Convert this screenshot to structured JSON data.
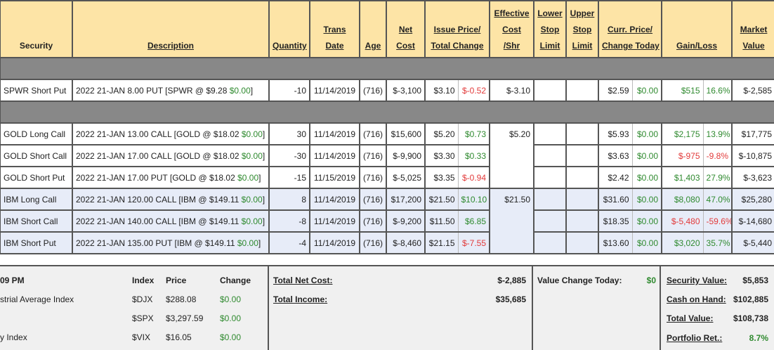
{
  "headers": {
    "security": "Security",
    "description": "Description",
    "quantity": "Quantity",
    "trans_date": [
      "Trans",
      "Date"
    ],
    "age": "Age",
    "net_cost": [
      "Net",
      "Cost"
    ],
    "issue_price": [
      "Issue Price/",
      "Total Change"
    ],
    "effective_cost": [
      "Effective",
      "Cost",
      "/Shr"
    ],
    "lower_stop": [
      "Lower",
      "Stop",
      "Limit"
    ],
    "upper_stop": [
      "Upper",
      "Stop",
      "Limit"
    ],
    "curr_price": [
      "Curr. Price/",
      "Change Today"
    ],
    "gain_loss": "Gain/Loss",
    "market_value": [
      "Market",
      "Value"
    ]
  },
  "rows": [
    {
      "security": "SPWR Short Put",
      "desc": "2022 21-JAN 8.00 PUT [SPWR @ $9.28 ",
      "desc_chg": "$0.00",
      "desc_tail": "]",
      "qty": "-10",
      "date": "11/14/2019",
      "age": "(716)",
      "net_cost": "$-3,100",
      "issue": "$3.10",
      "total_chg": "$-0.52",
      "total_chg_color": "red",
      "eff": "$-3.10",
      "curr": "$2.59",
      "chg_today": "$0.00",
      "gain": "$515",
      "gain_pct": "16.6%",
      "gain_color": "green",
      "mv": "$-2,585",
      "group": "spwr"
    },
    {
      "security": "GOLD Long Call",
      "desc": "2022 21-JAN 13.00 CALL [GOLD @ $18.02 ",
      "desc_chg": "$0.00",
      "desc_tail": "]",
      "qty": "30",
      "date": "11/14/2019",
      "age": "(716)",
      "net_cost": "$15,600",
      "issue": "$5.20",
      "total_chg": "$0.73",
      "total_chg_color": "green",
      "eff": "$5.20",
      "curr": "$5.93",
      "chg_today": "$0.00",
      "gain": "$2,175",
      "gain_pct": "13.9%",
      "gain_color": "green",
      "mv": "$17,775",
      "group": "gold"
    },
    {
      "security": "GOLD Short Call",
      "desc": "2022 21-JAN 17.00 CALL [GOLD @ $18.02 ",
      "desc_chg": "$0.00",
      "desc_tail": "]",
      "qty": "-30",
      "date": "11/14/2019",
      "age": "(716)",
      "net_cost": "$-9,900",
      "issue": "$3.30",
      "total_chg": "$0.33",
      "total_chg_color": "green",
      "curr": "$3.63",
      "chg_today": "$0.00",
      "gain": "$-975",
      "gain_pct": "-9.8%",
      "gain_color": "red",
      "mv": "$-10,875",
      "group": "gold"
    },
    {
      "security": "GOLD Short Put",
      "desc": "2022 21-JAN 17.00 PUT [GOLD @ $18.02 ",
      "desc_chg": "$0.00",
      "desc_tail": "]",
      "qty": "-15",
      "date": "11/15/2019",
      "age": "(716)",
      "net_cost": "$-5,025",
      "issue": "$3.35",
      "total_chg": "$-0.94",
      "total_chg_color": "red",
      "curr": "$2.42",
      "chg_today": "$0.00",
      "gain": "$1,403",
      "gain_pct": "27.9%",
      "gain_color": "green",
      "mv": "$-3,623",
      "group": "gold"
    },
    {
      "security": "IBM Long Call",
      "desc": "2022 21-JAN 120.00 CALL [IBM @ $149.11 ",
      "desc_chg": "$0.00",
      "desc_tail": "]",
      "qty": "8",
      "date": "11/14/2019",
      "age": "(716)",
      "net_cost": "$17,200",
      "issue": "$21.50",
      "total_chg": "$10.10",
      "total_chg_color": "green",
      "eff": "$21.50",
      "curr": "$31.60",
      "chg_today": "$0.00",
      "gain": "$8,080",
      "gain_pct": "47.0%",
      "gain_color": "green",
      "mv": "$25,280",
      "group": "ibm"
    },
    {
      "security": "IBM Short Call",
      "desc": "2022 21-JAN 140.00 CALL [IBM @ $149.11 ",
      "desc_chg": "$0.00",
      "desc_tail": "]",
      "qty": "-8",
      "date": "11/14/2019",
      "age": "(716)",
      "net_cost": "$-9,200",
      "issue": "$11.50",
      "total_chg": "$6.85",
      "total_chg_color": "green",
      "curr": "$18.35",
      "chg_today": "$0.00",
      "gain": "$-5,480",
      "gain_pct": "-59.6%",
      "gain_color": "red",
      "mv": "$-14,680",
      "group": "ibm"
    },
    {
      "security": "IBM Short Put",
      "desc": "2022 21-JAN 135.00 PUT [IBM @ $149.11 ",
      "desc_chg": "$0.00",
      "desc_tail": "]",
      "qty": "-4",
      "date": "11/14/2019",
      "age": "(716)",
      "net_cost": "$-8,460",
      "issue": "$21.15",
      "total_chg": "$-7.55",
      "total_chg_color": "red",
      "curr": "$13.60",
      "chg_today": "$0.00",
      "gain": "$3,020",
      "gain_pct": "35.7%",
      "gain_color": "green",
      "mv": "$-5,440",
      "group": "ibm"
    }
  ],
  "footer": {
    "time_label": "09 PM",
    "index_header": "Index",
    "price_header": "Price",
    "change_header": "Change",
    "indices": [
      {
        "name": "strial Average Index",
        "symbol": "$DJX",
        "price": "$288.08",
        "change": "$0.00"
      },
      {
        "name": "",
        "symbol": "$SPX",
        "price": "$3,297.59",
        "change": "$0.00"
      },
      {
        "name": "y Index",
        "symbol": "$VIX",
        "price": "$16.05",
        "change": "$0.00"
      }
    ],
    "total_net_cost_label": "Total Net Cost:",
    "total_net_cost": "$-2,885",
    "total_income_label": "Total Income:",
    "total_income": "$35,685",
    "value_change_label": "Value Change Today:",
    "value_change": "$0",
    "security_value_label": "Security Value:",
    "security_value": "$5,853",
    "cash_label": "Cash on Hand:",
    "cash": "$102,885",
    "total_value_label": "Total Value:",
    "total_value": "$108,738",
    "portfolio_ret_label": "Portfolio Ret.:",
    "portfolio_ret": "8.7%"
  },
  "colors": {
    "header_bg": "#fde4a6",
    "group_bar": "#888888",
    "alt_row": "#e7ecf8",
    "gain": "#2f8a2f",
    "loss": "#e23a3a"
  }
}
